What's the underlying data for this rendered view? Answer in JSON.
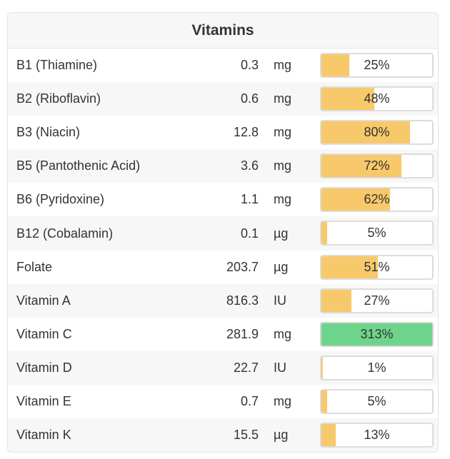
{
  "title": "Vitamins",
  "colors": {
    "bar_fill": "#f8c96a",
    "bar_fill_over": "#6fd48b",
    "bar_border": "#dcdcdc",
    "stripe": "#f7f7f7"
  },
  "rows": [
    {
      "name": "B1 (Thiamine)",
      "amount": "0.3",
      "unit": "mg",
      "percent_label": "25%",
      "percent": 25
    },
    {
      "name": "B2 (Riboflavin)",
      "amount": "0.6",
      "unit": "mg",
      "percent_label": "48%",
      "percent": 48
    },
    {
      "name": "B3 (Niacin)",
      "amount": "12.8",
      "unit": "mg",
      "percent_label": "80%",
      "percent": 80
    },
    {
      "name": "B5 (Pantothenic Acid)",
      "amount": "3.6",
      "unit": "mg",
      "percent_label": "72%",
      "percent": 72
    },
    {
      "name": "B6 (Pyridoxine)",
      "amount": "1.1",
      "unit": "mg",
      "percent_label": "62%",
      "percent": 62
    },
    {
      "name": "B12 (Cobalamin)",
      "amount": "0.1",
      "unit": "µg",
      "percent_label": "5%",
      "percent": 5
    },
    {
      "name": "Folate",
      "amount": "203.7",
      "unit": "µg",
      "percent_label": "51%",
      "percent": 51
    },
    {
      "name": "Vitamin A",
      "amount": "816.3",
      "unit": "IU",
      "percent_label": "27%",
      "percent": 27
    },
    {
      "name": "Vitamin C",
      "amount": "281.9",
      "unit": "mg",
      "percent_label": "313%",
      "percent": 313
    },
    {
      "name": "Vitamin D",
      "amount": "22.7",
      "unit": "IU",
      "percent_label": "1%",
      "percent": 1
    },
    {
      "name": "Vitamin E",
      "amount": "0.7",
      "unit": "mg",
      "percent_label": "5%",
      "percent": 5
    },
    {
      "name": "Vitamin K",
      "amount": "15.5",
      "unit": "µg",
      "percent_label": "13%",
      "percent": 13
    }
  ]
}
